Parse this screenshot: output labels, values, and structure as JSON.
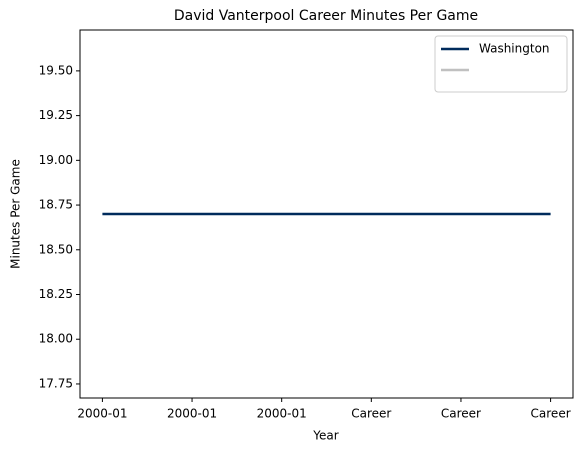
{
  "chart_data": {
    "type": "line",
    "title": "David Vanterpool Career Minutes Per Game",
    "x_label": "Year",
    "y_label": "Minutes Per Game",
    "x": [
      0,
      1
    ],
    "series": [
      {
        "name": "Washington",
        "color": "#002b5c",
        "values": [
          18.7,
          18.7
        ]
      },
      {
        "color": "#c0c0c0",
        "values": [
          null,
          null
        ]
      }
    ],
    "xlim": [
      -0.05,
      1.05
    ],
    "xticks": [
      {
        "value": 0,
        "label": "2000-01"
      },
      {
        "value": 0.2,
        "label": "2000-01"
      },
      {
        "value": 0.4,
        "label": "2000-01"
      },
      {
        "value": 0.6,
        "label": "Career"
      },
      {
        "value": 0.8,
        "label": "Career"
      },
      {
        "value": 1,
        "label": "Career"
      }
    ],
    "ylim": [
      17.6715,
      19.7285
    ],
    "yticks": [
      17.75,
      {
        "value": 18.0,
        "label": "18.00"
      },
      18.25,
      {
        "value": 18.5,
        "label": "18.50"
      },
      18.75,
      {
        "value": 19.0,
        "label": "19.00"
      },
      19.25,
      {
        "value": 19.5,
        "label": "19.50"
      }
    ],
    "legend": "upper right",
    "grid": false
  }
}
